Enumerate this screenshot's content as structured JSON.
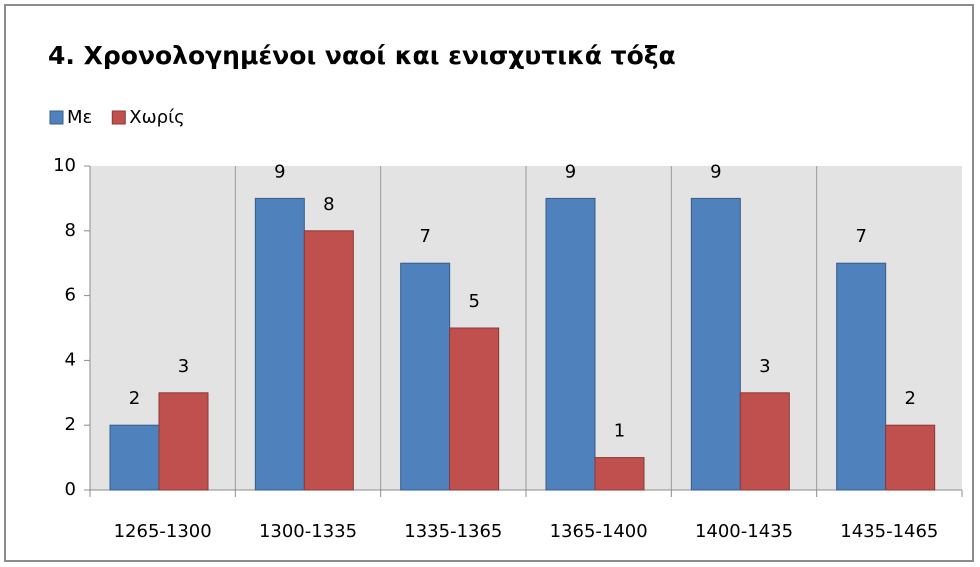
{
  "chart_data": {
    "type": "bar",
    "title": "4. Χρονολογημένοι ναοί και ενισχυτικά τόξα",
    "categories": [
      "1265-1300",
      "1300-1335",
      "1335-1365",
      "1365-1400",
      "1400-1435",
      "1435-1465"
    ],
    "series": [
      {
        "name": "Με",
        "color": "#4f81bd",
        "values": [
          2,
          9,
          7,
          9,
          9,
          7
        ]
      },
      {
        "name": "Χωρίς",
        "color": "#c0504d",
        "values": [
          3,
          8,
          5,
          1,
          3,
          2
        ]
      }
    ],
    "ylim": [
      0,
      10
    ],
    "yticks": [
      0,
      2,
      4,
      6,
      8,
      10
    ],
    "legend": "top-left"
  }
}
